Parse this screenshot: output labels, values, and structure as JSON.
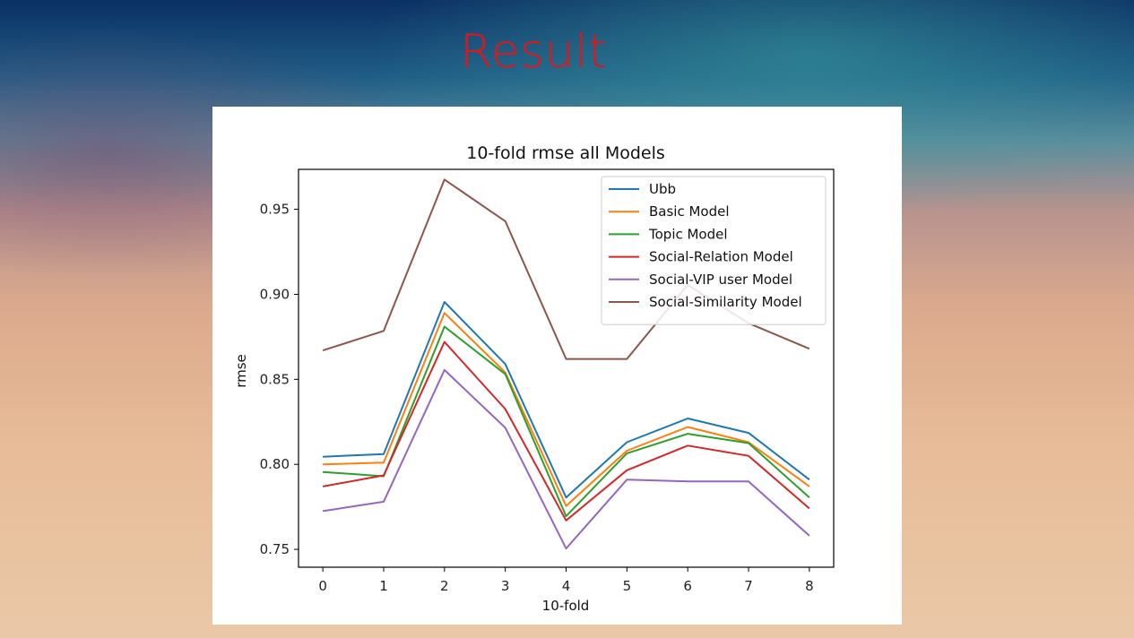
{
  "slide": {
    "title": "Result"
  },
  "chart_data": {
    "type": "line",
    "title": "10-fold rmse all Models",
    "xlabel": "10-fold",
    "ylabel": "rmse",
    "x": [
      0,
      1,
      2,
      3,
      4,
      5,
      6,
      7,
      8
    ],
    "xlim": [
      -0.4,
      8.4
    ],
    "ylim": [
      0.7395,
      0.9735
    ],
    "yticks": [
      0.75,
      0.8,
      0.85,
      0.9,
      0.95
    ],
    "ytick_labels": [
      "0.75",
      "0.80",
      "0.85",
      "0.90",
      "0.95"
    ],
    "xtick_labels": [
      "0",
      "1",
      "2",
      "3",
      "4",
      "5",
      "6",
      "7",
      "8"
    ],
    "grid": false,
    "legend_position": "top-right",
    "series": [
      {
        "name": "Ubb",
        "color": "#1f77b4",
        "values": [
          0.8045,
          0.806,
          0.8955,
          0.859,
          0.7805,
          0.813,
          0.827,
          0.8185,
          0.791
        ]
      },
      {
        "name": "Basic Model",
        "color": "#ff7f0e",
        "values": [
          0.8,
          0.801,
          0.889,
          0.854,
          0.7755,
          0.808,
          0.822,
          0.813,
          0.787
        ]
      },
      {
        "name": "Topic Model",
        "color": "#2ca02c",
        "values": [
          0.7955,
          0.793,
          0.881,
          0.853,
          0.7695,
          0.8065,
          0.818,
          0.8125,
          0.7805
        ]
      },
      {
        "name": "Social-Relation Model",
        "color": "#d62728",
        "values": [
          0.787,
          0.7935,
          0.872,
          0.8325,
          0.767,
          0.7965,
          0.811,
          0.805,
          0.774
        ]
      },
      {
        "name": "Social-VIP user Model",
        "color": "#9467bd",
        "values": [
          0.7725,
          0.778,
          0.8555,
          0.8215,
          0.7505,
          0.791,
          0.79,
          0.79,
          0.758
        ]
      },
      {
        "name": "Social-Similarity Model",
        "color": "#8c564b",
        "values": [
          0.867,
          0.8785,
          0.9675,
          0.943,
          0.862,
          0.862,
          0.9055,
          0.883,
          0.868
        ]
      }
    ]
  }
}
